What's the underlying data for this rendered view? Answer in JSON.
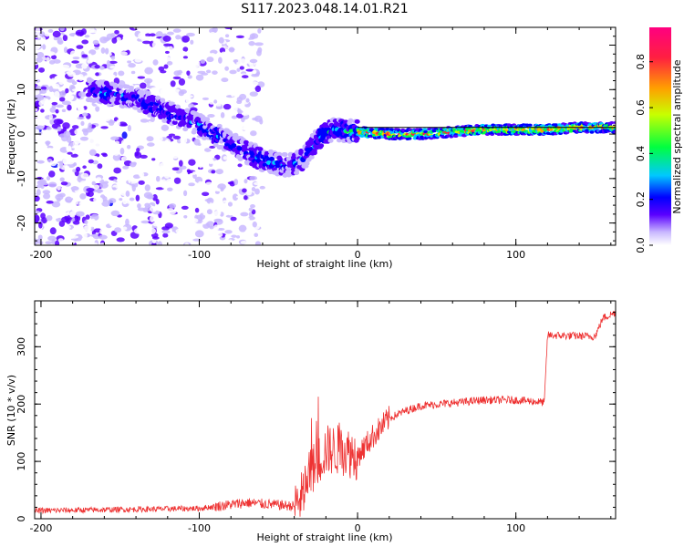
{
  "title": "S117.2023.048.14.01.R21",
  "chart_data": [
    {
      "type": "heatmap",
      "title": "S117.2023.048.14.01.R21",
      "xlabel": "Height of straight line (km)",
      "ylabel": "Frequency (Hz)",
      "xlim": [
        -204,
        163
      ],
      "ylim": [
        -25,
        24
      ],
      "x_ticks": [
        -200,
        -100,
        0,
        100
      ],
      "y_ticks": [
        -20,
        -10,
        0,
        10,
        20
      ],
      "colorbar": {
        "label": "Normalized spectral amplitude",
        "range": [
          0,
          0.95
        ],
        "ticks": [
          0.0,
          0.2,
          0.4,
          0.6,
          0.8
        ],
        "colors": [
          "#ffffff",
          "#c9b8ff",
          "#5a00ff",
          "#0000ff",
          "#00c8ff",
          "#00ff40",
          "#c8ff00",
          "#ffa000",
          "#ff2040",
          "#ff0080"
        ]
      },
      "ridge": {
        "x": [
          -170,
          -140,
          -120,
          -100,
          -80,
          -60,
          -45,
          -35,
          -25,
          -15,
          0,
          20,
          40,
          60,
          80,
          100,
          120,
          140,
          163
        ],
        "y": [
          10,
          8,
          5,
          2,
          -2,
          -6,
          -7,
          -6,
          -1,
          1,
          0.5,
          0,
          0,
          0.5,
          1,
          1,
          1,
          1.5,
          1.5
        ]
      },
      "noise_region_x": [
        -204,
        -60
      ],
      "grid": false
    },
    {
      "type": "line",
      "xlabel": "Height of straight line (km)",
      "ylabel": "SNR (10 * v/v)",
      "xlim": [
        -204,
        163
      ],
      "ylim": [
        0,
        380
      ],
      "x_ticks": [
        -200,
        -100,
        0,
        100
      ],
      "y_ticks": [
        0,
        100,
        200,
        300
      ],
      "color": "#ee3333",
      "trend": {
        "x": [
          -204,
          -150,
          -100,
          -70,
          -40,
          -35,
          -30,
          -20,
          -10,
          0,
          10,
          20,
          30,
          40,
          60,
          80,
          100,
          118,
          120,
          150,
          155,
          163
        ],
        "y": [
          14,
          16,
          18,
          28,
          22,
          40,
          80,
          120,
          120,
          110,
          145,
          175,
          188,
          197,
          202,
          207,
          207,
          203,
          320,
          318,
          350,
          360
        ]
      },
      "grid": false
    }
  ]
}
